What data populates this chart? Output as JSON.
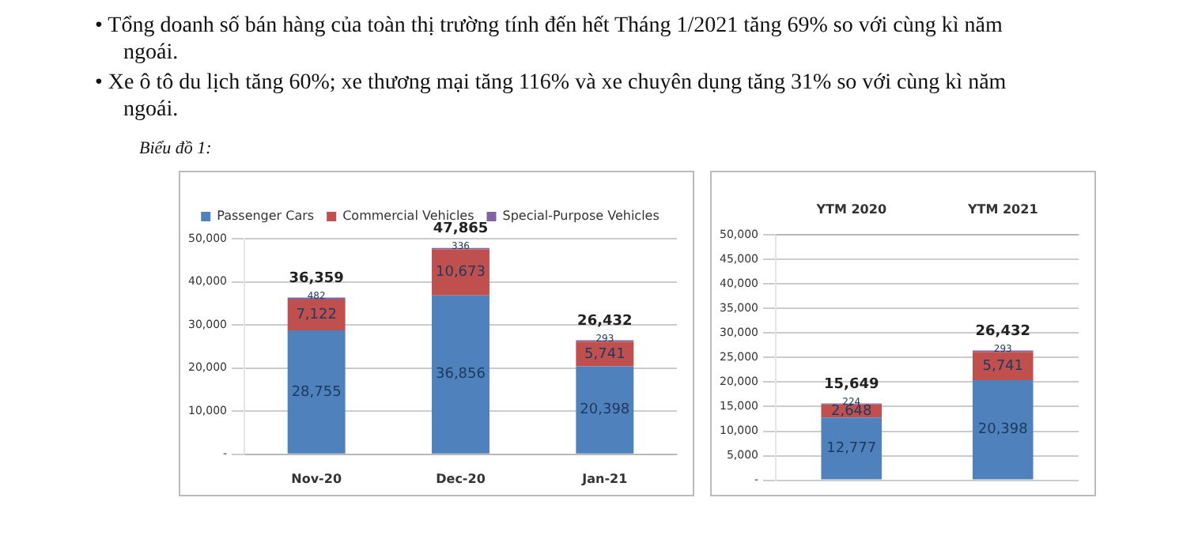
{
  "chart_data": [
    {
      "type": "bar",
      "annotations": [
        "• Tổng doanh số bán hàng của toàn thị trường tính đến hết Tháng 1/2021 tăng 69% so với cùng kì năm ngoái.",
        "• Xe ô tô du lịch tăng 60%; xe thương mại tăng 116% và xe chuyên dụng tăng 31% so với cùng kì năm ngoái.",
        "Biểu đồ 1:"
      ],
      "categories": [
        "Nov-20",
        "Dec-20",
        "Jan-21"
      ],
      "stacked": true,
      "series": [
        {
          "name": "Passenger Cars",
          "color": "#4f81bd",
          "values": [
            28755,
            36856,
            20398
          ],
          "value_labels": [
            "28,755",
            "36,856",
            "20,398"
          ]
        },
        {
          "name": "Commercial Vehicles",
          "color": "#c0504d",
          "values": [
            7122,
            10673,
            5741
          ],
          "value_labels": [
            "7,122",
            "10,673",
            "5,741"
          ]
        },
        {
          "name": "Special-Purpose Vehicles",
          "color": "#8064a2",
          "values": [
            482,
            336,
            293
          ],
          "value_labels": [
            "482",
            "336",
            "293"
          ]
        }
      ],
      "totals": [
        "36,359",
        "47,865",
        "26,432"
      ],
      "ylim": [
        0,
        50000
      ],
      "yticks": [
        {
          "value": 0,
          "label": "-"
        },
        {
          "value": 10000,
          "label": "10,000"
        },
        {
          "value": 20000,
          "label": "20,000"
        },
        {
          "value": 30000,
          "label": "30,000"
        },
        {
          "value": 40000,
          "label": "40,000"
        },
        {
          "value": 50000,
          "label": "50,000"
        }
      ],
      "grid": "y",
      "legend": "top"
    },
    {
      "type": "bar",
      "categories": [
        "YTM 2020",
        "YTM 2021"
      ],
      "stacked": true,
      "series": [
        {
          "color": "#4f81bd",
          "values": [
            12777,
            20398
          ],
          "value_labels": [
            "12,777",
            "20,398"
          ]
        },
        {
          "color": "#c0504d",
          "values": [
            2648,
            5741
          ],
          "value_labels": [
            "2,648",
            "5,741"
          ]
        },
        {
          "color": "#8064a2",
          "values": [
            224,
            293
          ],
          "value_labels": [
            "224",
            "293"
          ]
        }
      ],
      "totals": [
        "15,649",
        "26,432"
      ],
      "ylim": [
        0,
        50000
      ],
      "yticks": [
        {
          "value": 0,
          "label": "-"
        },
        {
          "value": 5000,
          "label": "5,000"
        },
        {
          "value": 10000,
          "label": "10,000"
        },
        {
          "value": 15000,
          "label": "15,000"
        },
        {
          "value": 20000,
          "label": "20,000"
        },
        {
          "value": 25000,
          "label": "25,000"
        },
        {
          "value": 30000,
          "label": "30,000"
        },
        {
          "value": 35000,
          "label": "35,000"
        },
        {
          "value": 40000,
          "label": "40,000"
        },
        {
          "value": 45000,
          "label": "45,000"
        },
        {
          "value": 50000,
          "label": "50,000"
        }
      ],
      "grid": "y",
      "legend": false
    }
  ]
}
